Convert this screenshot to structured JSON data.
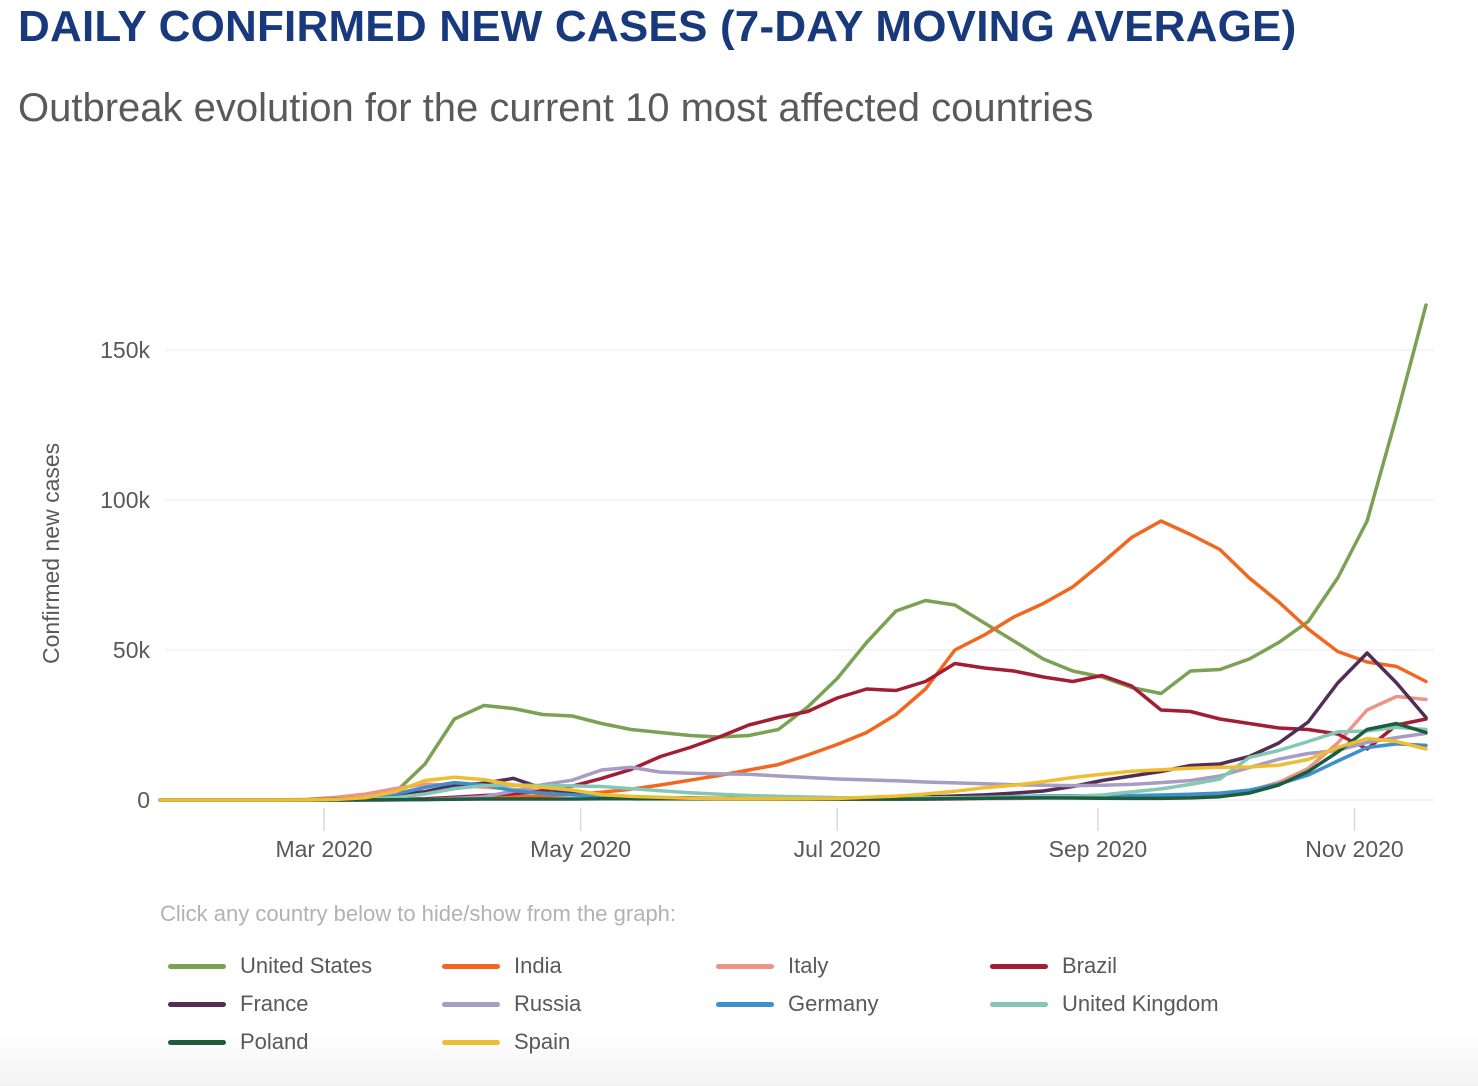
{
  "header": {
    "title": "DAILY CONFIRMED NEW CASES (7-DAY MOVING AVERAGE)",
    "subtitle": "Outbreak evolution for the current 10 most affected countries"
  },
  "legend": {
    "hint": "Click any country below to hide/show from the graph:"
  },
  "chart_data": {
    "type": "line",
    "title": "DAILY CONFIRMED NEW CASES (7-DAY MOVING AVERAGE)",
    "xlabel": "",
    "ylabel": "Confirmed new cases",
    "ylim": [
      0,
      175000
    ],
    "xlim": [
      "2020-01-22",
      "2020-11-18"
    ],
    "grid": "horizontal",
    "legend_position": "bottom",
    "y_axis_ticks": [
      {
        "label": "0",
        "value": 0
      },
      {
        "label": "50k",
        "value": 50000
      },
      {
        "label": "100k",
        "value": 100000
      },
      {
        "label": "150k",
        "value": 150000
      }
    ],
    "x_axis_ticks": [
      {
        "label": "Mar 2020",
        "date": "2020-03-01"
      },
      {
        "label": "May 2020",
        "date": "2020-05-01"
      },
      {
        "label": "Jul 2020",
        "date": "2020-07-01"
      },
      {
        "label": "Sep 2020",
        "date": "2020-09-01"
      },
      {
        "label": "Nov 2020",
        "date": "2020-11-01"
      }
    ],
    "x": [
      "2020-01-22",
      "2020-01-29",
      "2020-02-05",
      "2020-02-12",
      "2020-02-19",
      "2020-02-26",
      "2020-03-04",
      "2020-03-11",
      "2020-03-18",
      "2020-03-25",
      "2020-04-01",
      "2020-04-08",
      "2020-04-15",
      "2020-04-22",
      "2020-04-29",
      "2020-05-06",
      "2020-05-13",
      "2020-05-20",
      "2020-05-27",
      "2020-06-03",
      "2020-06-10",
      "2020-06-17",
      "2020-06-24",
      "2020-07-01",
      "2020-07-08",
      "2020-07-15",
      "2020-07-22",
      "2020-07-29",
      "2020-08-05",
      "2020-08-12",
      "2020-08-19",
      "2020-08-26",
      "2020-09-02",
      "2020-09-09",
      "2020-09-16",
      "2020-09-23",
      "2020-09-30",
      "2020-10-07",
      "2020-10-14",
      "2020-10-21",
      "2020-10-28",
      "2020-11-04",
      "2020-11-11",
      "2020-11-18"
    ],
    "series": [
      {
        "name": "United States",
        "color": "#7BA154",
        "values": [
          0,
          0,
          0,
          0,
          0,
          10,
          40,
          400,
          2600,
          12000,
          27000,
          31500,
          30500,
          28500,
          28000,
          25500,
          23500,
          22500,
          21500,
          21000,
          21500,
          23500,
          31000,
          40500,
          52500,
          63000,
          66500,
          65000,
          59000,
          53000,
          47000,
          43000,
          41000,
          37500,
          35500,
          43000,
          43500,
          47000,
          52500,
          59500,
          74000,
          93000,
          128000,
          165000
        ]
      },
      {
        "name": "India",
        "color": "#F2671F",
        "values": [
          0,
          0,
          0,
          0,
          0,
          0,
          10,
          30,
          60,
          120,
          400,
          750,
          1000,
          1400,
          1800,
          2600,
          3600,
          5000,
          6600,
          8200,
          10000,
          11800,
          15000,
          18500,
          22500,
          28500,
          37000,
          50000,
          55000,
          61000,
          65500,
          71000,
          79000,
          87500,
          93000,
          88500,
          83500,
          74000,
          66000,
          57000,
          49500,
          46000,
          44500,
          39500
        ]
      },
      {
        "name": "Italy",
        "color": "#EC9488",
        "values": [
          0,
          0,
          0,
          5,
          20,
          200,
          900,
          2000,
          3800,
          5300,
          4900,
          4300,
          3600,
          3000,
          2400,
          1700,
          1100,
          800,
          550,
          400,
          300,
          270,
          240,
          220,
          200,
          210,
          240,
          290,
          400,
          500,
          700,
          1000,
          1300,
          1400,
          1500,
          1700,
          1900,
          3100,
          5900,
          10500,
          19000,
          30000,
          34500,
          33500
        ]
      },
      {
        "name": "Brazil",
        "color": "#A31E35",
        "values": [
          0,
          0,
          0,
          0,
          0,
          0,
          5,
          30,
          150,
          400,
          900,
          1500,
          2100,
          2900,
          4600,
          7200,
          10200,
          14500,
          17500,
          21000,
          25000,
          27500,
          29500,
          34000,
          37000,
          36500,
          39500,
          45500,
          44000,
          43000,
          41000,
          39500,
          41500,
          38000,
          30000,
          29500,
          27000,
          25500,
          24000,
          23500,
          22000,
          17000,
          25000,
          27000
        ]
      },
      {
        "name": "France",
        "color": "#522E54",
        "values": [
          0,
          0,
          0,
          5,
          20,
          80,
          300,
          700,
          1600,
          2800,
          4800,
          5600,
          7200,
          3900,
          2300,
          1500,
          1000,
          800,
          700,
          550,
          500,
          500,
          550,
          550,
          650,
          750,
          1000,
          1350,
          1700,
          2300,
          3000,
          4500,
          6500,
          8000,
          9500,
          11500,
          12000,
          14500,
          19000,
          26000,
          39000,
          49000,
          39000,
          27500
        ]
      },
      {
        "name": "Russia",
        "color": "#A79CC1",
        "values": [
          0,
          0,
          0,
          0,
          0,
          0,
          5,
          10,
          50,
          160,
          550,
          1100,
          2900,
          5100,
          6600,
          10000,
          10900,
          9300,
          8900,
          8700,
          8600,
          8000,
          7500,
          7000,
          6700,
          6400,
          6000,
          5700,
          5400,
          5100,
          4900,
          4800,
          4900,
          5200,
          5800,
          6500,
          8000,
          10800,
          13600,
          15500,
          16500,
          19200,
          20800,
          22200
        ]
      },
      {
        "name": "Germany",
        "color": "#3E8FCC",
        "values": [
          0,
          0,
          5,
          5,
          10,
          40,
          130,
          450,
          2000,
          4200,
          5800,
          5000,
          3100,
          2300,
          1700,
          1200,
          900,
          700,
          600,
          450,
          400,
          500,
          550,
          450,
          400,
          450,
          550,
          700,
          900,
          1100,
          1350,
          1400,
          1350,
          1450,
          1650,
          1900,
          2300,
          3300,
          5300,
          8300,
          13000,
          17500,
          18700,
          18200
        ]
      },
      {
        "name": "United Kingdom",
        "color": "#83C7B4",
        "values": [
          0,
          0,
          0,
          0,
          0,
          0,
          30,
          150,
          800,
          2000,
          3800,
          4800,
          5000,
          4800,
          4700,
          4500,
          3800,
          3100,
          2400,
          1900,
          1500,
          1250,
          1000,
          800,
          650,
          650,
          700,
          750,
          850,
          1000,
          1100,
          1250,
          1650,
          2700,
          3700,
          5200,
          7000,
          14200,
          16500,
          19500,
          22700,
          23000,
          24200,
          23500
        ]
      },
      {
        "name": "Poland",
        "color": "#1D5C3F",
        "values": [
          0,
          0,
          0,
          0,
          0,
          0,
          5,
          20,
          80,
          180,
          280,
          330,
          350,
          350,
          350,
          400,
          400,
          380,
          380,
          350,
          330,
          320,
          310,
          300,
          290,
          300,
          350,
          450,
          600,
          650,
          700,
          650,
          600,
          550,
          550,
          700,
          1100,
          2300,
          5000,
          9500,
          16000,
          23500,
          25500,
          22500
        ]
      },
      {
        "name": "Spain",
        "color": "#EFBE30",
        "values": [
          0,
          0,
          0,
          0,
          5,
          40,
          200,
          800,
          2800,
          6500,
          7600,
          6800,
          5000,
          4200,
          3300,
          1800,
          1200,
          900,
          600,
          450,
          400,
          400,
          400,
          500,
          900,
          1300,
          2000,
          2900,
          4100,
          4900,
          6100,
          7500,
          8600,
          9600,
          10100,
          10600,
          10900,
          11000,
          11600,
          13500,
          17500,
          20500,
          19500,
          17000
        ]
      }
    ]
  }
}
